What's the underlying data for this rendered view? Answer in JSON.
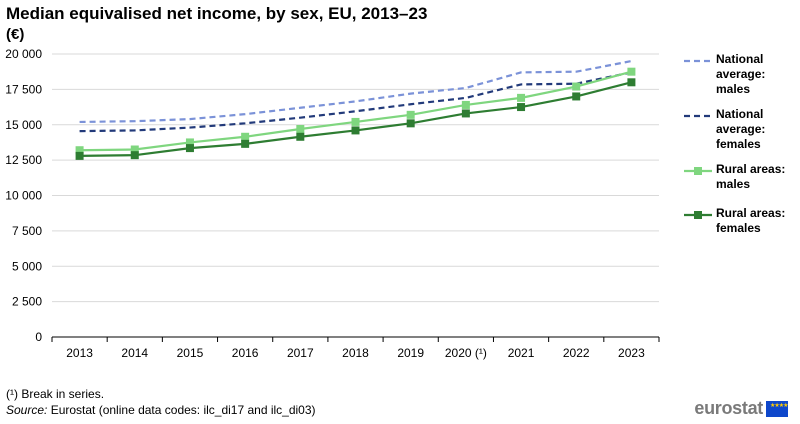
{
  "chart_data": {
    "type": "line",
    "title": "Median equivalised net income, by sex, EU, 2013–23",
    "unit": "(€)",
    "categories": [
      "2013",
      "2014",
      "2015",
      "2016",
      "2017",
      "2018",
      "2019",
      "2020 (¹)",
      "2021",
      "2022",
      "2023"
    ],
    "y_ticks": [
      "0",
      "2 500",
      "5 000",
      "7 500",
      "10 000",
      "12 500",
      "15 000",
      "17 500",
      "20 000"
    ],
    "ylim": [
      0,
      20000
    ],
    "grid": true,
    "legend_position": "right",
    "series": [
      {
        "name": "National average: males",
        "label_lines": [
          "National",
          "average:",
          "males"
        ],
        "color": "#7b92d8",
        "style": "dashed",
        "marker": "none",
        "values": [
          15200,
          15250,
          15400,
          15750,
          16200,
          16650,
          17200,
          17600,
          18700,
          18750,
          19500
        ]
      },
      {
        "name": "National average: females",
        "label_lines": [
          "National",
          "average:",
          "females"
        ],
        "color": "#223a7a",
        "style": "dashed",
        "marker": "none",
        "values": [
          14550,
          14600,
          14800,
          15100,
          15500,
          15950,
          16450,
          16900,
          17850,
          17900,
          18700
        ]
      },
      {
        "name": "Rural areas: males",
        "label_lines": [
          "Rural areas:",
          "males"
        ],
        "color": "#7fd67f",
        "style": "solid",
        "marker": "square",
        "values": [
          13200,
          13250,
          13750,
          14150,
          14700,
          15200,
          15700,
          16400,
          16900,
          17700,
          18750
        ]
      },
      {
        "name": "Rural areas: females",
        "label_lines": [
          "Rural areas:",
          "females"
        ],
        "color": "#2e7d32",
        "style": "solid",
        "marker": "square",
        "values": [
          12800,
          12850,
          13350,
          13650,
          14150,
          14600,
          15100,
          15800,
          16250,
          17000,
          18000
        ]
      }
    ]
  },
  "footnote": "(¹) Break in series.",
  "source": {
    "label": "Source:",
    "text": " Eurostat (online data codes: ilc_di17 and ilc_di03)"
  },
  "brand": "eurostat"
}
